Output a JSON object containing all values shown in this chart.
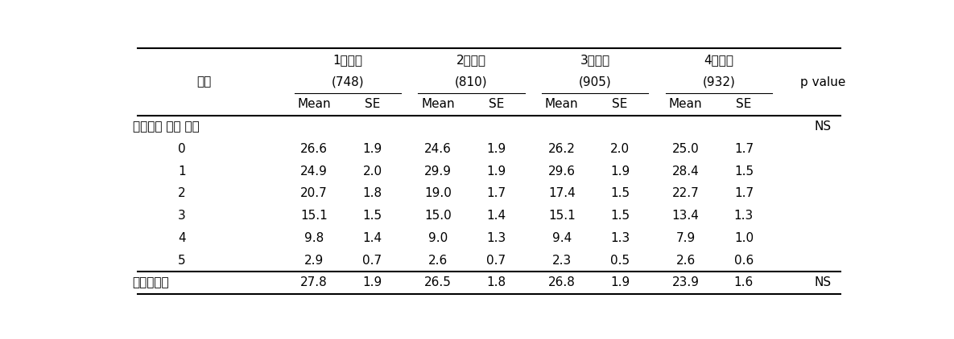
{
  "col_groups": [
    "1사분위",
    "2사분위",
    "3사분위",
    "4사분위"
  ],
  "col_subgroups": [
    "(748)",
    "(810)",
    "(905)",
    "(932)"
  ],
  "row_header": "항목",
  "p_value_header": "p value",
  "section_header": "위험요인 보유 갯수",
  "section_header_pval": "NS",
  "rows": [
    {
      "label": "0",
      "values": [
        "26.6",
        "1.9",
        "24.6",
        "1.9",
        "26.2",
        "2.0",
        "25.0",
        "1.7"
      ],
      "pval": ""
    },
    {
      "label": "1",
      "values": [
        "24.9",
        "2.0",
        "29.9",
        "1.9",
        "29.6",
        "1.9",
        "28.4",
        "1.5"
      ],
      "pval": ""
    },
    {
      "label": "2",
      "values": [
        "20.7",
        "1.8",
        "19.0",
        "1.7",
        "17.4",
        "1.5",
        "22.7",
        "1.7"
      ],
      "pval": ""
    },
    {
      "label": "3",
      "values": [
        "15.1",
        "1.5",
        "15.0",
        "1.4",
        "15.1",
        "1.5",
        "13.4",
        "1.3"
      ],
      "pval": ""
    },
    {
      "label": "4",
      "values": [
        "9.8",
        "1.4",
        "9.0",
        "1.3",
        "9.4",
        "1.3",
        "7.9",
        "1.0"
      ],
      "pval": ""
    },
    {
      "label": "5",
      "values": [
        "2.9",
        "0.7",
        "2.6",
        "0.7",
        "2.3",
        "0.5",
        "2.6",
        "0.6"
      ],
      "pval": ""
    }
  ],
  "footer_row": {
    "label": "대사증후군",
    "values": [
      "27.8",
      "1.9",
      "26.5",
      "1.8",
      "26.8",
      "1.9",
      "23.9",
      "1.6"
    ],
    "pval": "NS"
  },
  "font_size": 11.0,
  "font_size_small": 10.5
}
